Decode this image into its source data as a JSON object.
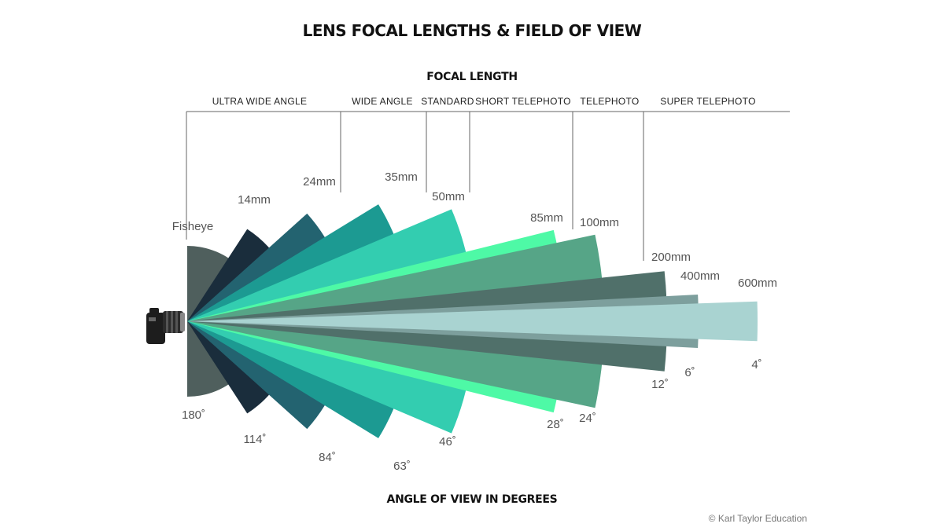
{
  "title": "LENS FOCAL LENGTHS &  FIELD OF VIEW",
  "top_axis_title": "FOCAL LENGTH",
  "bottom_axis_title": "ANGLE OF VIEW IN DEGREES",
  "credit": "© Karl Taylor Education",
  "categories": [
    "ULTRA WIDE ANGLE",
    "WIDE ANGLE",
    "STANDARD",
    "SHORT TELEPHOTO",
    "TELEPHOTO",
    "SUPER TELEPHOTO"
  ],
  "lenses": [
    {
      "focal": "Fisheye",
      "angle_label": "180˚",
      "angle_deg": 180,
      "color": "#4f5f5d"
    },
    {
      "focal": "14mm",
      "angle_label": "114˚",
      "angle_deg": 114,
      "color": "#1a2d3c"
    },
    {
      "focal": "24mm",
      "angle_label": "84˚",
      "angle_deg": 84,
      "color": "#236370"
    },
    {
      "focal": "35mm",
      "angle_label": "63˚",
      "angle_deg": 63,
      "color": "#1c9a92"
    },
    {
      "focal": "50mm",
      "angle_label": "46˚",
      "angle_deg": 46,
      "color": "#33cdb0"
    },
    {
      "focal": "85mm",
      "angle_label": "28˚",
      "angle_deg": 28,
      "color": "#4ef9a6"
    },
    {
      "focal": "100mm",
      "angle_label": "24˚",
      "angle_deg": 24,
      "color": "#56a587"
    },
    {
      "focal": "200mm",
      "angle_label": "12˚",
      "angle_deg": 12,
      "color": "#50706a"
    },
    {
      "focal": "400mm",
      "angle_label": "6˚",
      "angle_deg": 6,
      "color": "#7d9f9d"
    },
    {
      "focal": "600mm",
      "angle_label": "4˚",
      "angle_deg": 4,
      "color": "#a9d3d1"
    }
  ],
  "icon": "camera-icon"
}
